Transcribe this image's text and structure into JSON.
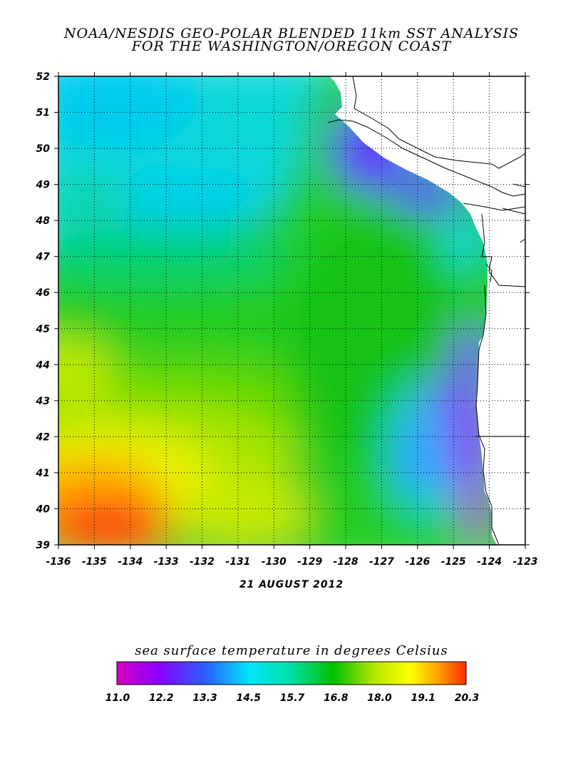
{
  "title": {
    "line1": "NOAA/NESDIS GEO-POLAR BLENDED 11km SST ANALYSIS",
    "line2": "FOR THE WASHINGTON/OREGON COAST"
  },
  "date": "21 AUGUST 2012",
  "map": {
    "lat_ticks": [
      "52",
      "51",
      "50",
      "49",
      "48",
      "47",
      "46",
      "45",
      "44",
      "43",
      "42",
      "41",
      "40",
      "39"
    ],
    "lon_ticks": [
      "-136",
      "-135",
      "-134",
      "-133",
      "-132",
      "-131",
      "-130",
      "-129",
      "-128",
      "-127",
      "-126",
      "-125",
      "-124",
      "-123"
    ],
    "lat_range": [
      39,
      52
    ],
    "lon_range": [
      -136,
      -123
    ],
    "grid_style": "dotted"
  },
  "colorbar": {
    "title": "sea surface temperature in degrees Celsius",
    "labels": [
      "11.0",
      "12.2",
      "13.3",
      "14.5",
      "15.7",
      "16.8",
      "18.0",
      "19.1",
      "20.3"
    ],
    "range": [
      11.0,
      20.3
    ],
    "colors": [
      "#d400c0",
      "#8a00ff",
      "#2a5cff",
      "#00e6ff",
      "#00e0a0",
      "#00c000",
      "#b8e800",
      "#ffff00",
      "#ffa000",
      "#ff2a00"
    ]
  }
}
